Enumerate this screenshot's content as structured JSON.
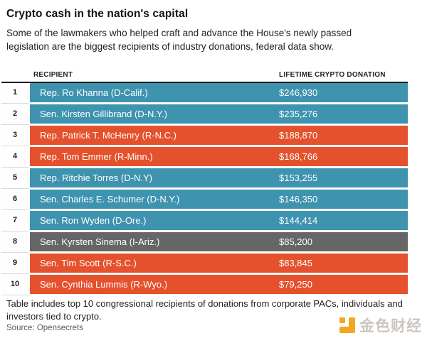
{
  "header": {
    "title": "Crypto cash in the nation's capital",
    "subtitle": "Some of the lawmakers who helped craft and advance the House's newly passed legislation are the biggest recipients of industry donations, federal data show."
  },
  "colors": {
    "democrat": "#3E93AF",
    "republican": "#E5512C",
    "independent": "#666666"
  },
  "table": {
    "columns": {
      "recipient": "RECIPIENT",
      "donation": "LIFETIME CRYPTO DONATION"
    },
    "rows": [
      {
        "rank": "1",
        "recipient": "Rep. Ro Khanna (D-Calif.)",
        "donation": "$246,930",
        "party": "democrat"
      },
      {
        "rank": "2",
        "recipient": "Sen. Kirsten Gillibrand (D-N.Y.)",
        "donation": "$235,276",
        "party": "democrat"
      },
      {
        "rank": "3",
        "recipient": "Rep. Patrick T. McHenry (R-N.C.)",
        "donation": "$188,870",
        "party": "republican"
      },
      {
        "rank": "4",
        "recipient": "Rep. Tom Emmer (R-Minn.)",
        "donation": "$168,766",
        "party": "republican"
      },
      {
        "rank": "5",
        "recipient": "Rep. Ritchie Torres (D-N.Y)",
        "donation": "$153,255",
        "party": "democrat"
      },
      {
        "rank": "6",
        "recipient": "Sen. Charles E. Schumer (D-N.Y.)",
        "donation": "$146,350",
        "party": "democrat"
      },
      {
        "rank": "7",
        "recipient": "Sen. Ron Wyden (D-Ore.)",
        "donation": "$144,414",
        "party": "democrat"
      },
      {
        "rank": "8",
        "recipient": "Sen. Kyrsten Sinema (I-Ariz.)",
        "donation": "$85,200",
        "party": "independent"
      },
      {
        "rank": "9",
        "recipient": "Sen. Tim Scott (R-S.C.)",
        "donation": "$83,845",
        "party": "republican"
      },
      {
        "rank": "10",
        "recipient": "Sen. Cynthia Lummis (R-Wyo.)",
        "donation": "$79,250",
        "party": "republican"
      }
    ]
  },
  "chart_data": {
    "type": "table",
    "title": "Crypto cash in the nation's capital",
    "columns": [
      "RECIPIENT",
      "LIFETIME CRYPTO DONATION"
    ],
    "rows": [
      [
        "Rep. Ro Khanna (D-Calif.)",
        246930
      ],
      [
        "Sen. Kirsten Gillibrand (D-N.Y.)",
        235276
      ],
      [
        "Rep. Patrick T. McHenry (R-N.C.)",
        188870
      ],
      [
        "Rep. Tom Emmer (R-Minn.)",
        168766
      ],
      [
        "Rep. Ritchie Torres (D-N.Y)",
        153255
      ],
      [
        "Sen. Charles E. Schumer (D-N.Y.)",
        146350
      ],
      [
        "Sen. Ron Wyden (D-Ore.)",
        144414
      ],
      [
        "Sen. Kyrsten Sinema (I-Ariz.)",
        85200
      ],
      [
        "Sen. Tim Scott (R-S.C.)",
        83845
      ],
      [
        "Sen. Cynthia Lummis (R-Wyo.)",
        79250
      ]
    ],
    "row_color_legend": {
      "democrat": "#3E93AF",
      "republican": "#E5512C",
      "independent": "#666666"
    }
  },
  "footer": {
    "note": "Table includes top 10 congressional recipients of donations from corporate PACs, individuals and investors tied to crypto.",
    "source": "Source: Opensecrets"
  },
  "watermark": {
    "icon": "jinse-logo-icon",
    "text": "金色财经",
    "accent": "#F2A71F"
  }
}
